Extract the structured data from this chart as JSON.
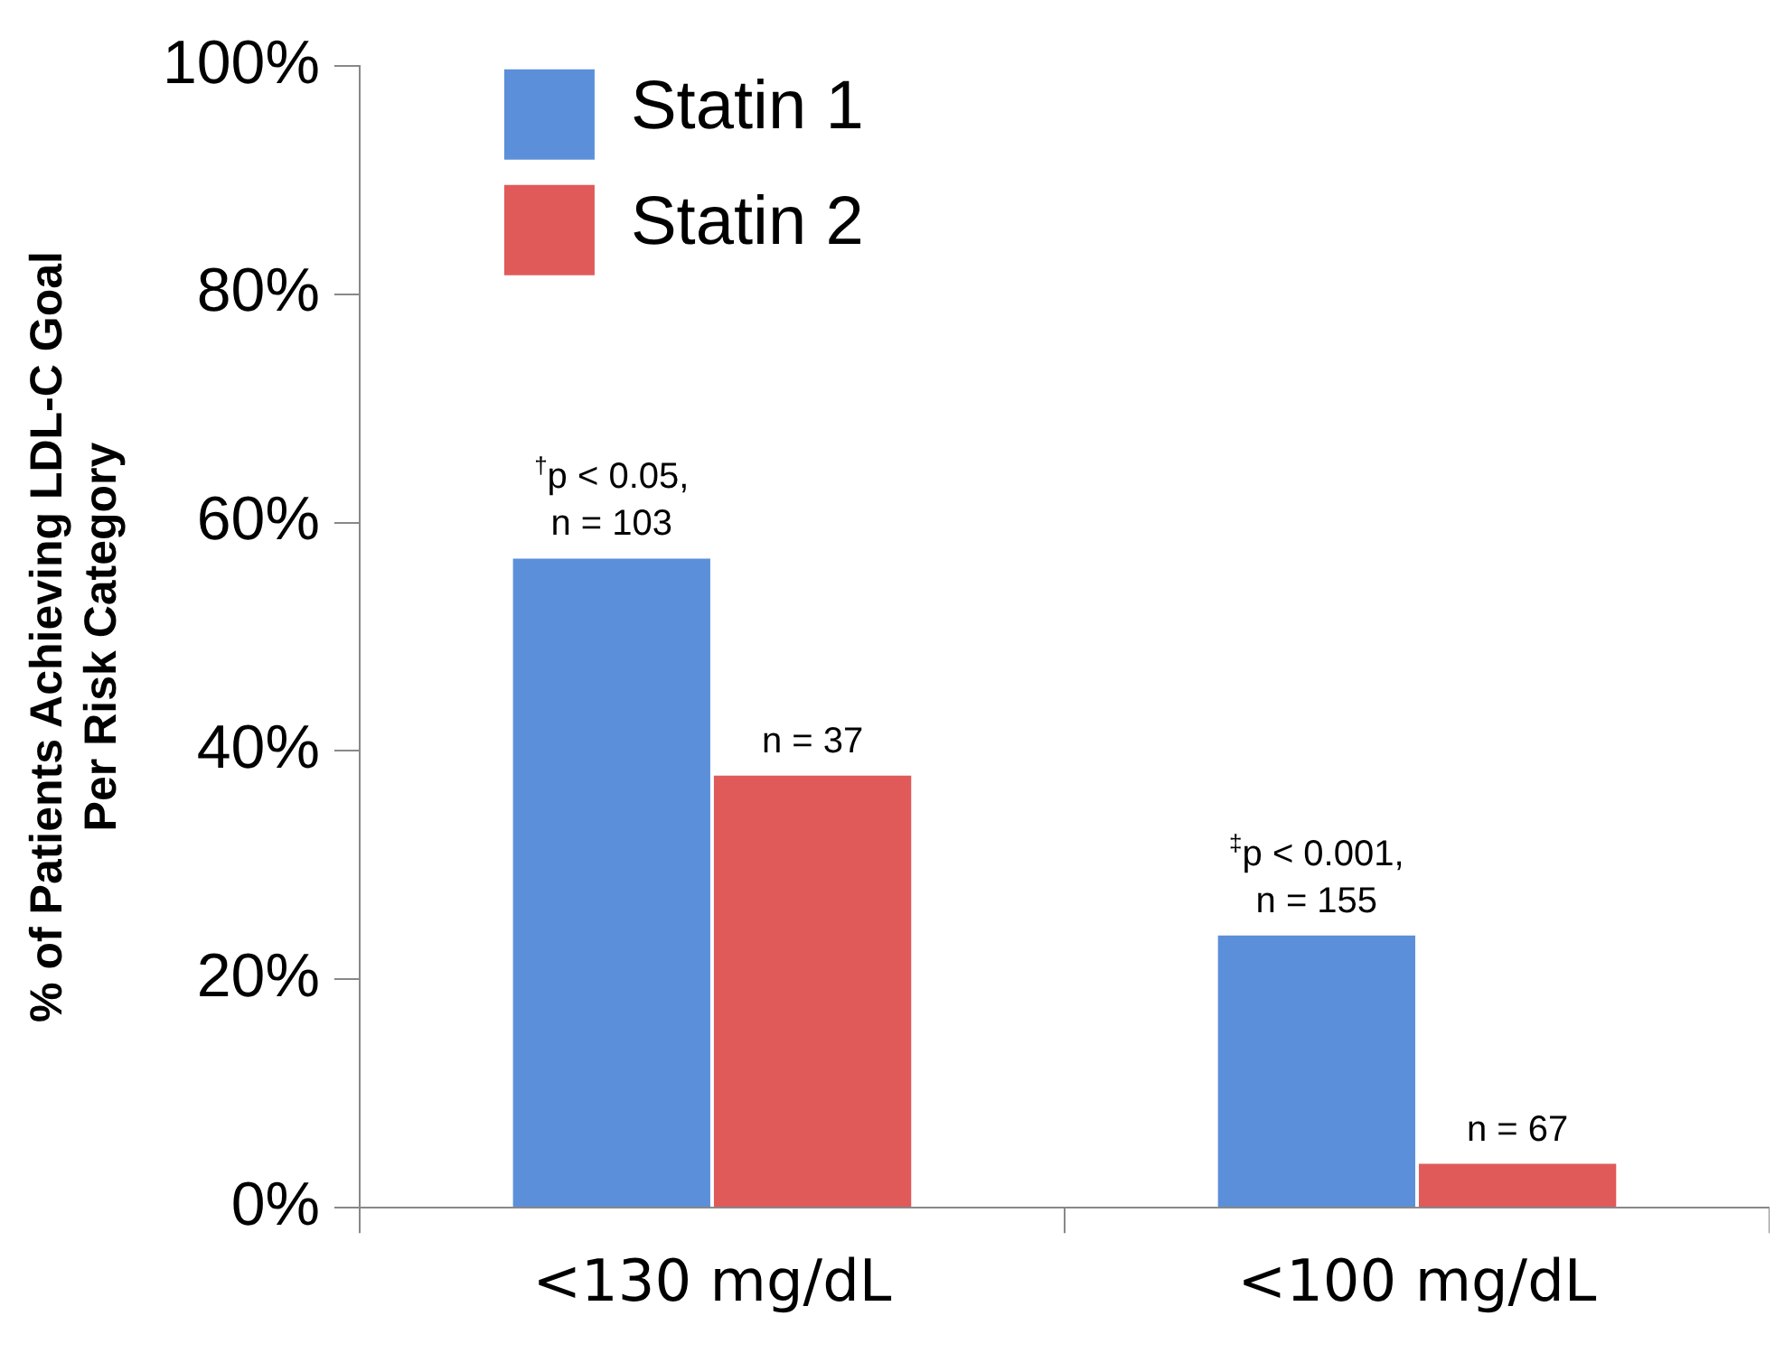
{
  "chart_data": {
    "type": "bar",
    "ylabel": "% of Patients Achieving LDL-C Goal\nPer Risk Category",
    "categories": [
      "<130 mg/dL",
      "<100 mg/dL"
    ],
    "series": [
      {
        "name": "Statin 1",
        "color": "#5b8fd9",
        "values": [
          57,
          24
        ]
      },
      {
        "name": "Statin 2",
        "color": "#e05a5a",
        "values": [
          38,
          4
        ]
      }
    ],
    "annotations": [
      {
        "text": "$^{†}$p < 0.05,\nn = 103",
        "x": "<130 mg/dL",
        "y": 57
      },
      {
        "text": "n = 37",
        "x": "<130 mg/dL",
        "y": 38
      },
      {
        "text": "$^{‡}$p < 0.001,\nn = 155",
        "x": "<100 mg/dL",
        "y": 24
      },
      {
        "text": "n = 67",
        "x": "<100 mg/dL",
        "y": 4
      }
    ],
    "ylim": [
      0,
      100
    ],
    "yticks": [
      {
        "value": 0,
        "label": "0%"
      },
      {
        "value": 20,
        "label": "20%"
      },
      {
        "value": 40,
        "label": "40%"
      },
      {
        "value": 60,
        "label": "60%"
      },
      {
        "value": 80,
        "label": "80%"
      },
      {
        "value": 100,
        "label": "100%"
      }
    ],
    "grid": false,
    "legend": "top left"
  }
}
